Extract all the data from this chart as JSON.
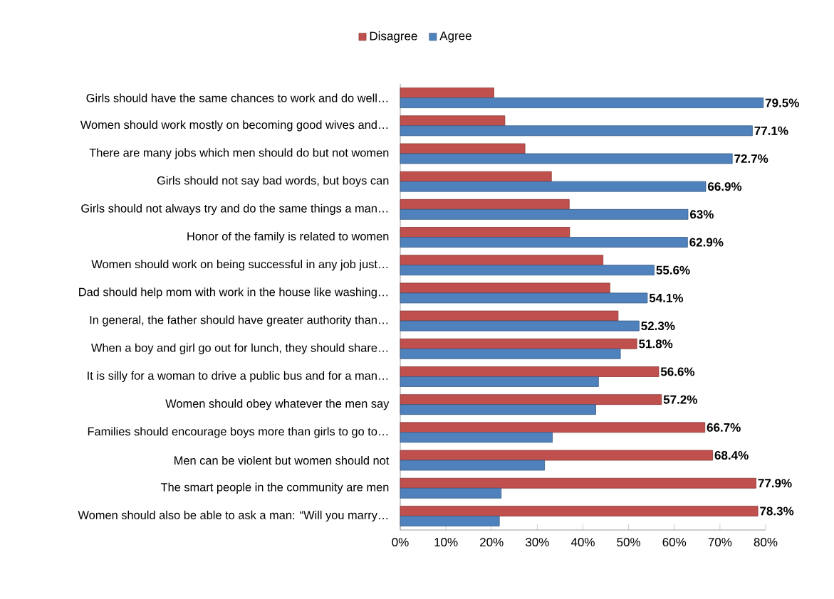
{
  "chart_data": {
    "type": "bar",
    "orientation": "horizontal",
    "categories": [
      "Girls should have the same chances to work and do well…",
      "Women should work mostly on becoming good wives and…",
      "There are many jobs which men should do but not women",
      "Girls should not say bad words, but boys can",
      "Girls should not always try and do the same things a man…",
      "Honor of the family is related to women",
      "Women should work on being successful in any job just…",
      "Dad should help mom with work in the house like washing…",
      "In general, the father should have greater authority than…",
      "When a boy and girl go out for lunch, they should share…",
      "It is silly for a woman to drive a public bus and for a man…",
      "Women should obey whatever the men say",
      "Families should encourage boys more than girls to go to…",
      "Men can be violent but women should not",
      "The smart people in the community are men",
      "Women should also be able to ask a man: “Will you marry…"
    ],
    "series": [
      {
        "name": "Disagree",
        "color": "#c0504d",
        "values": [
          20.5,
          22.9,
          27.3,
          33.1,
          37,
          37.1,
          44.4,
          45.9,
          47.7,
          51.8,
          56.6,
          57.2,
          66.7,
          68.4,
          77.9,
          78.3
        ],
        "value_labels": [
          null,
          null,
          null,
          null,
          null,
          null,
          null,
          null,
          null,
          "51.8%",
          "56.6%",
          "57.2%",
          "66.7%",
          "68.4%",
          "77.9%",
          "78.3%"
        ]
      },
      {
        "name": "Agree",
        "color": "#4f81bd",
        "values": [
          79.5,
          77.1,
          72.7,
          66.9,
          63,
          62.9,
          55.6,
          54.1,
          52.3,
          48.2,
          43.4,
          42.8,
          33.3,
          31.6,
          22.1,
          21.7
        ],
        "value_labels": [
          "79.5%",
          "77.1%",
          "72.7%",
          "66.9%",
          "63%",
          "62.9%",
          "55.6%",
          "54.1%",
          "52.3%",
          null,
          null,
          null,
          null,
          null,
          null,
          null
        ]
      }
    ],
    "xlim": [
      0,
      80
    ],
    "xticks": [
      {
        "value": 0,
        "label": "0%"
      },
      {
        "value": 10,
        "label": "10%"
      },
      {
        "value": 20,
        "label": "20%"
      },
      {
        "value": 30,
        "label": "30%"
      },
      {
        "value": 40,
        "label": "40%"
      },
      {
        "value": 50,
        "label": "50%"
      },
      {
        "value": 60,
        "label": "60%"
      },
      {
        "value": 70,
        "label": "70%"
      },
      {
        "value": 80,
        "label": "80%"
      }
    ],
    "legend": "top"
  }
}
